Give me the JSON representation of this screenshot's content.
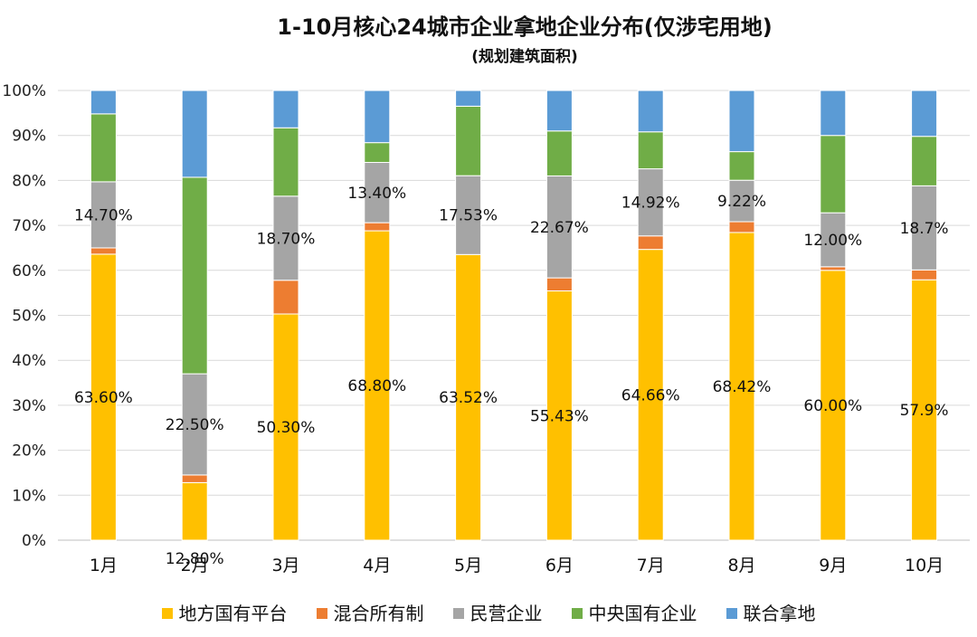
{
  "chart_data": {
    "type": "stacked-bar-100",
    "title": "1-10月核心24城市企业拿地企业分布(仅涉宅用地)",
    "subtitle": "(规划建筑面积)",
    "categories": [
      "1月",
      "2月",
      "3月",
      "4月",
      "5月",
      "6月",
      "7月",
      "8月",
      "9月",
      "10月"
    ],
    "ylim": [
      0,
      100
    ],
    "ytick_labels": [
      "0%",
      "10%",
      "20%",
      "30%",
      "40%",
      "50%",
      "60%",
      "70%",
      "80%",
      "90%",
      "100%"
    ],
    "grid": true,
    "legend_position": "bottom",
    "series": [
      {
        "name": "地方国有平台",
        "color": "#FFC000",
        "values": [
          63.6,
          12.8,
          50.3,
          68.8,
          63.52,
          55.43,
          64.66,
          68.42,
          60.0,
          57.9
        ],
        "labels": [
          "63.60%",
          "12.80%",
          "50.30%",
          "68.80%",
          "63.52%",
          "55.43%",
          "64.66%",
          "68.42%",
          "60.00%",
          "57.9%"
        ]
      },
      {
        "name": "混合所有制",
        "color": "#ED7D31",
        "values": [
          1.4,
          1.7,
          7.5,
          1.8,
          0.0,
          2.9,
          3.0,
          2.4,
          0.8,
          2.2
        ],
        "labels": []
      },
      {
        "name": "民营企业",
        "color": "#A5A5A5",
        "values": [
          14.7,
          22.5,
          18.7,
          13.4,
          17.53,
          22.67,
          14.92,
          9.22,
          12.0,
          18.7
        ],
        "labels": [
          "14.70%",
          "22.50%",
          "18.70%",
          "13.40%",
          "17.53%",
          "22.67%",
          "14.92%",
          "9.22%",
          "12.00%",
          "18.7%"
        ]
      },
      {
        "name": "中央国有企业",
        "color": "#70AD47",
        "values": [
          15.1,
          43.7,
          15.2,
          4.4,
          15.45,
          10.0,
          8.22,
          6.36,
          17.2,
          11.0
        ],
        "labels": []
      },
      {
        "name": "联合拿地",
        "color": "#5B9BD5",
        "values": [
          5.2,
          19.3,
          8.3,
          11.6,
          3.5,
          9.0,
          9.2,
          13.6,
          10.0,
          10.2
        ],
        "labels": []
      }
    ]
  }
}
